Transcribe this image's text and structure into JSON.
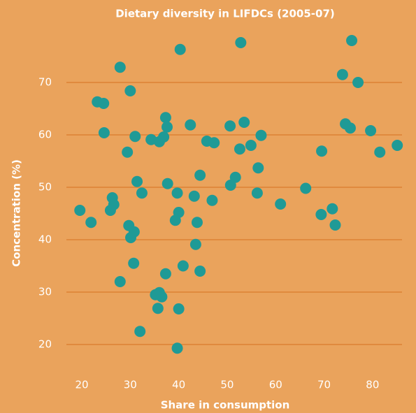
{
  "chart_data": {
    "type": "scatter",
    "title": "Dietary diversity in LIFDCs (2005-07)",
    "x_label": "Share in consumption",
    "y_label": "Concentration (%)",
    "color": "#1f9a96",
    "grid": true,
    "xlim": [
      16,
      88
    ],
    "ylim": [
      16,
      84
    ],
    "xticks": [
      20,
      30,
      40,
      50,
      60,
      70,
      80
    ],
    "yticks": [
      20,
      30,
      40,
      50,
      60,
      70
    ],
    "x": [
      19.6,
      21.9,
      23.2,
      24.5,
      24.6,
      27.9,
      30,
      31,
      29.4,
      26.3,
      25.9,
      26.6,
      31.4,
      32.4,
      29.7,
      30.1,
      30.8,
      30.7,
      27.9,
      32,
      34.3,
      36,
      36.9,
      37.3,
      37.6,
      37.7,
      39.7,
      40,
      39.3,
      37.3,
      35.2,
      36,
      36.5,
      35.7,
      40,
      39.7,
      40.3,
      40.9,
      42.4,
      43.2,
      43.8,
      43.5,
      44.4,
      44.4,
      45.8,
      47.3,
      46.9,
      52.8,
      50.6,
      50.7,
      51.7,
      52.6,
      53.5,
      54.9,
      57,
      56.4,
      56.2,
      61,
      66.2,
      69.5,
      69.4,
      71.7,
      72.3,
      73.8,
      74.4,
      75.4,
      75.7,
      77,
      79.6,
      81.5,
      85.1
    ],
    "values": [
      45.6,
      43.3,
      66.3,
      66,
      60.4,
      72.9,
      68.4,
      59.7,
      56.7,
      48,
      45.6,
      46.7,
      51.1,
      48.9,
      42.7,
      40.4,
      41.5,
      35.5,
      32,
      22.5,
      59.1,
      58.7,
      59.6,
      63.3,
      61.5,
      50.7,
      48.9,
      45.2,
      43.7,
      33.5,
      29.5,
      29.9,
      29.1,
      26.9,
      26.8,
      19.3,
      76.3,
      35,
      61.9,
      48.3,
      43.3,
      39.1,
      52.3,
      34,
      58.8,
      58.5,
      47.5,
      77.6,
      61.7,
      50.4,
      51.9,
      57.3,
      62.4,
      58,
      59.9,
      53.7,
      48.9,
      46.8,
      49.8,
      56.9,
      44.8,
      45.9,
      42.8,
      71.5,
      62.1,
      61.3,
      78,
      70,
      60.8,
      56.7,
      58
    ]
  }
}
